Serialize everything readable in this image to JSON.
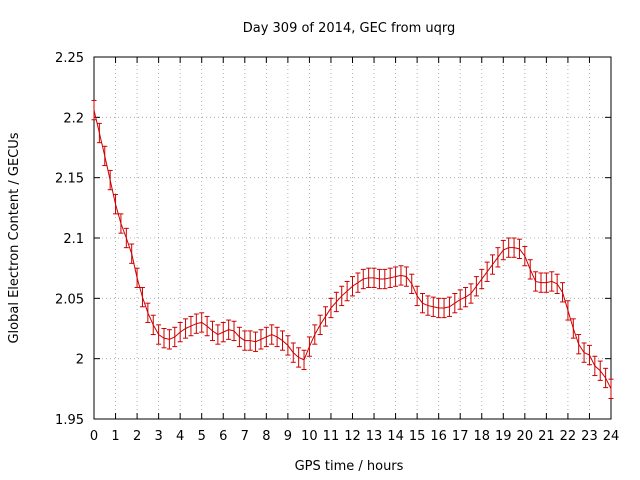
{
  "chart_data": {
    "type": "line",
    "title": "Day 309 of 2014, GEC from uqrg",
    "xlabel": "GPS time / hours",
    "ylabel": "Global Electron Content / GECUs",
    "xlim": [
      0,
      24
    ],
    "ylim": [
      1.95,
      2.25
    ],
    "xticks": [
      0,
      1,
      2,
      3,
      4,
      5,
      6,
      7,
      8,
      9,
      10,
      11,
      12,
      13,
      14,
      15,
      16,
      17,
      18,
      19,
      20,
      21,
      22,
      23,
      24
    ],
    "yticks": [
      1.95,
      2.0,
      2.05,
      2.1,
      2.15,
      2.2,
      2.25
    ],
    "ytick_labels": [
      "1.95",
      "2",
      "2.05",
      "2.1",
      "2.15",
      "2.2",
      "2.25"
    ],
    "grid": true,
    "legend": "none",
    "color": "#cc0000",
    "error": 0.008,
    "series": [
      {
        "x": [
          0,
          0.25,
          0.5,
          0.75,
          1,
          1.25,
          1.5,
          1.75,
          2,
          2.25,
          2.5,
          2.75,
          3,
          3.25,
          3.5,
          3.75,
          4,
          4.25,
          4.5,
          4.75,
          5,
          5.25,
          5.5,
          5.75,
          6,
          6.25,
          6.5,
          6.75,
          7,
          7.25,
          7.5,
          7.75,
          8,
          8.25,
          8.5,
          8.75,
          9,
          9.25,
          9.5,
          9.75,
          10,
          10.25,
          10.5,
          10.75,
          11,
          11.25,
          11.5,
          11.75,
          12,
          12.25,
          12.5,
          12.75,
          13,
          13.25,
          13.5,
          13.75,
          14,
          14.25,
          14.5,
          14.75,
          15,
          15.25,
          15.5,
          15.75,
          16,
          16.25,
          16.5,
          16.75,
          17,
          17.25,
          17.5,
          17.75,
          18,
          18.25,
          18.5,
          18.75,
          19,
          19.25,
          19.5,
          19.75,
          20,
          20.25,
          20.5,
          20.75,
          21,
          21.25,
          21.5,
          21.75,
          22,
          22.25,
          22.5,
          22.75,
          23,
          23.25,
          23.5,
          23.75,
          24
        ],
        "y": [
          2.206,
          2.187,
          2.168,
          2.148,
          2.128,
          2.112,
          2.1,
          2.087,
          2.067,
          2.051,
          2.038,
          2.028,
          2.02,
          2.017,
          2.016,
          2.018,
          2.022,
          2.025,
          2.027,
          2.029,
          2.03,
          2.027,
          2.023,
          2.02,
          2.022,
          2.024,
          2.023,
          2.018,
          2.015,
          2.015,
          2.014,
          2.016,
          2.018,
          2.02,
          2.018,
          2.015,
          2.011,
          2.005,
          2.001,
          1.999,
          2.01,
          2.02,
          2.028,
          2.035,
          2.042,
          2.047,
          2.052,
          2.056,
          2.06,
          2.063,
          2.066,
          2.067,
          2.067,
          2.066,
          2.066,
          2.067,
          2.068,
          2.069,
          2.068,
          2.062,
          2.052,
          2.046,
          2.044,
          2.043,
          2.042,
          2.042,
          2.043,
          2.046,
          2.049,
          2.051,
          2.054,
          2.06,
          2.066,
          2.072,
          2.078,
          2.084,
          2.09,
          2.092,
          2.092,
          2.091,
          2.085,
          2.074,
          2.064,
          2.063,
          2.063,
          2.064,
          2.062,
          2.055,
          2.04,
          2.025,
          2.012,
          2.005,
          2.003,
          1.994,
          1.99,
          1.984,
          1.975
        ]
      }
    ]
  }
}
